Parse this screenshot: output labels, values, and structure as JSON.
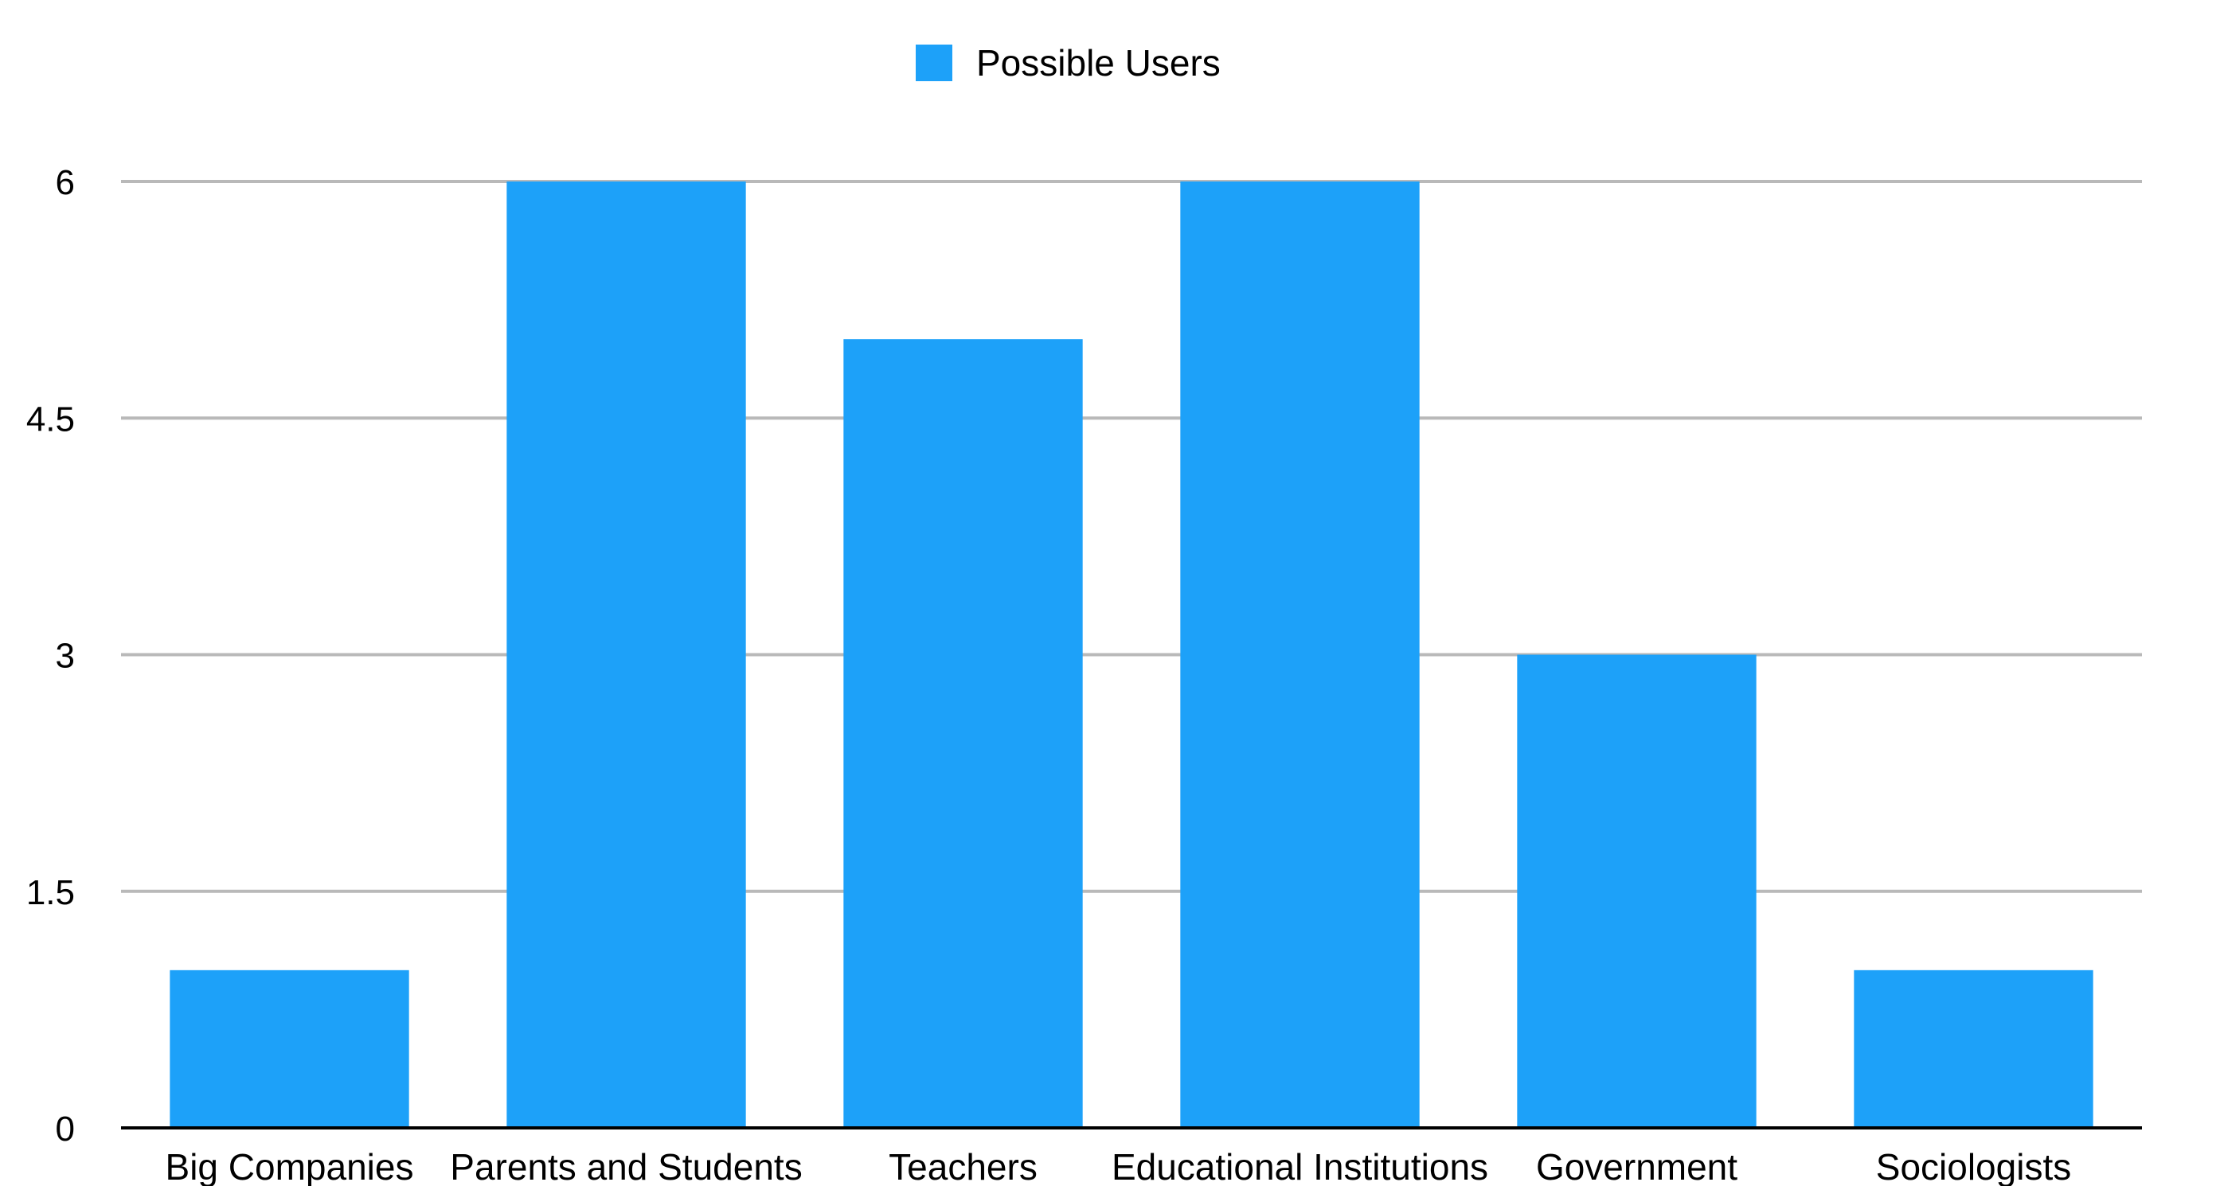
{
  "chart_data": {
    "type": "bar",
    "categories": [
      "Big Companies",
      "Parents and Students",
      "Teachers",
      "Educational Institutions",
      "Government",
      "Sociologists"
    ],
    "series": [
      {
        "name": "Possible Users",
        "values": [
          1,
          6,
          5,
          6,
          3,
          1
        ],
        "color": "#1da1f9"
      }
    ],
    "ylim": [
      0,
      6
    ],
    "yticks": [
      0,
      1.5,
      3,
      4.5,
      6
    ],
    "ytick_labels": [
      "0",
      "1.5",
      "3",
      "4.5",
      "6"
    ],
    "grid": true,
    "legend_position": "top-center",
    "title": "",
    "xlabel": "",
    "ylabel": ""
  },
  "colors": {
    "bar": "#1da1f9",
    "grid": "#b9b9b9",
    "axis": "#000000",
    "text": "#000000"
  }
}
